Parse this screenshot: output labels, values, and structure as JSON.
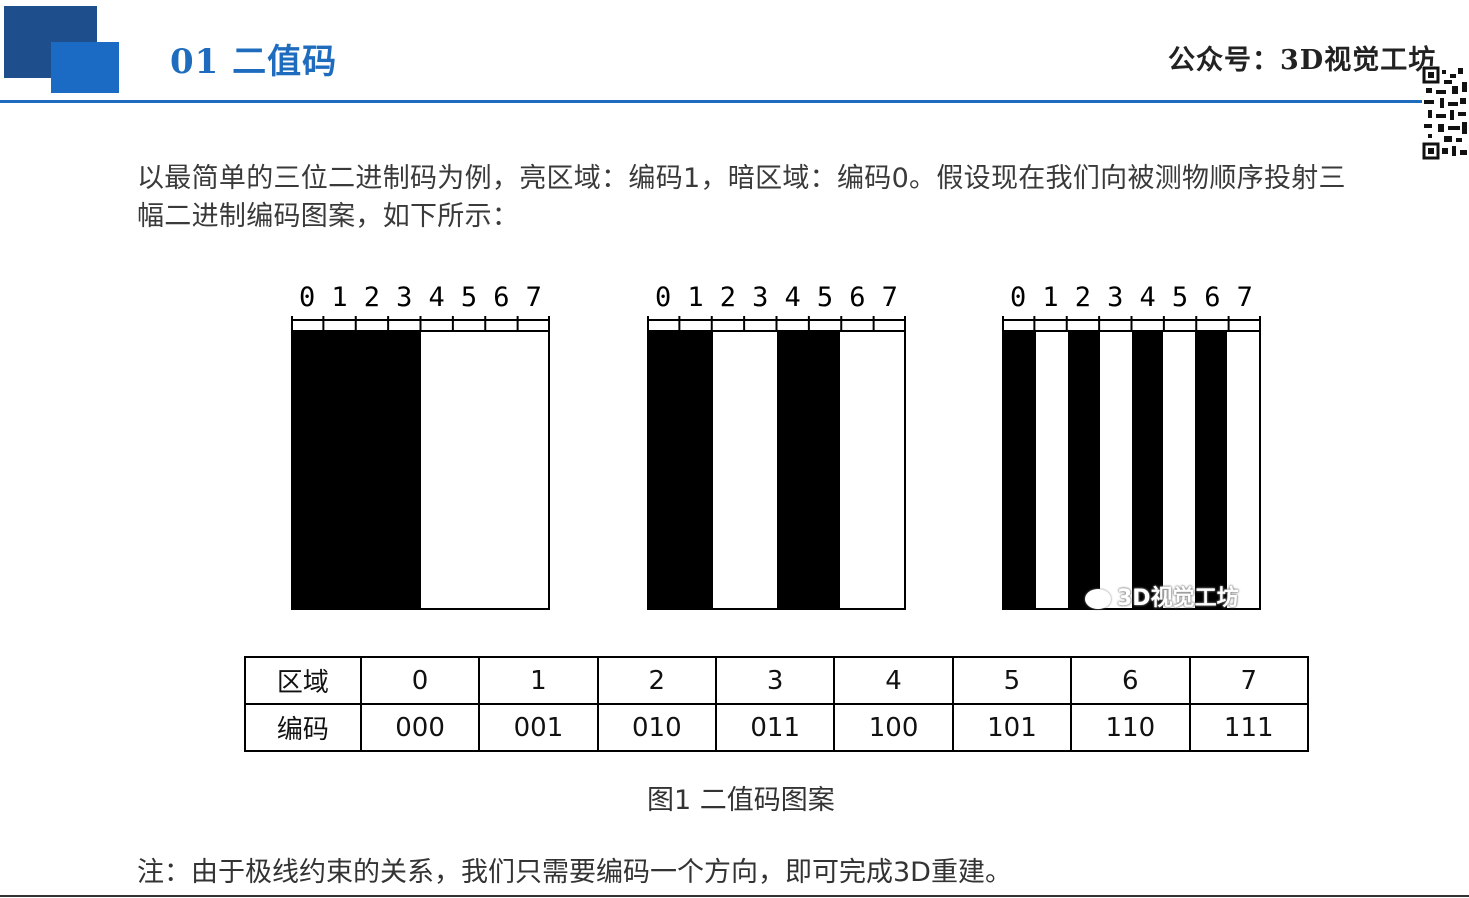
{
  "header": {
    "title": "01 二值码",
    "brand": "公众号：3D视觉工坊",
    "accent_color": "#1f6cbe"
  },
  "intro": "以最简单的三位二进制码为例，亮区域：编码1，暗区域：编码0。假设现在我们向被测物顺序投射三幅二进制编码图案，如下所示：",
  "patterns": {
    "digits": [
      "0",
      "1",
      "2",
      "3",
      "4",
      "5",
      "6",
      "7"
    ],
    "items": [
      {
        "name": "pattern-1",
        "stripes": [
          "b",
          "b",
          "b",
          "b",
          "w",
          "w",
          "w",
          "w"
        ]
      },
      {
        "name": "pattern-2",
        "stripes": [
          "b",
          "b",
          "w",
          "w",
          "b",
          "b",
          "w",
          "w"
        ]
      },
      {
        "name": "pattern-3",
        "stripes": [
          "b",
          "w",
          "b",
          "w",
          "b",
          "w",
          "b",
          "w"
        ]
      }
    ]
  },
  "watermark": "3D视觉工坊",
  "table": {
    "region_label": "区域",
    "code_label": "编码",
    "regions": [
      "0",
      "1",
      "2",
      "3",
      "4",
      "5",
      "6",
      "7"
    ],
    "codes": [
      "000",
      "001",
      "010",
      "011",
      "100",
      "101",
      "110",
      "111"
    ]
  },
  "caption": "图1 二值码图案",
  "note": "注：由于极线约束的关系，我们只需要编码一个方向，即可完成3D重建。"
}
